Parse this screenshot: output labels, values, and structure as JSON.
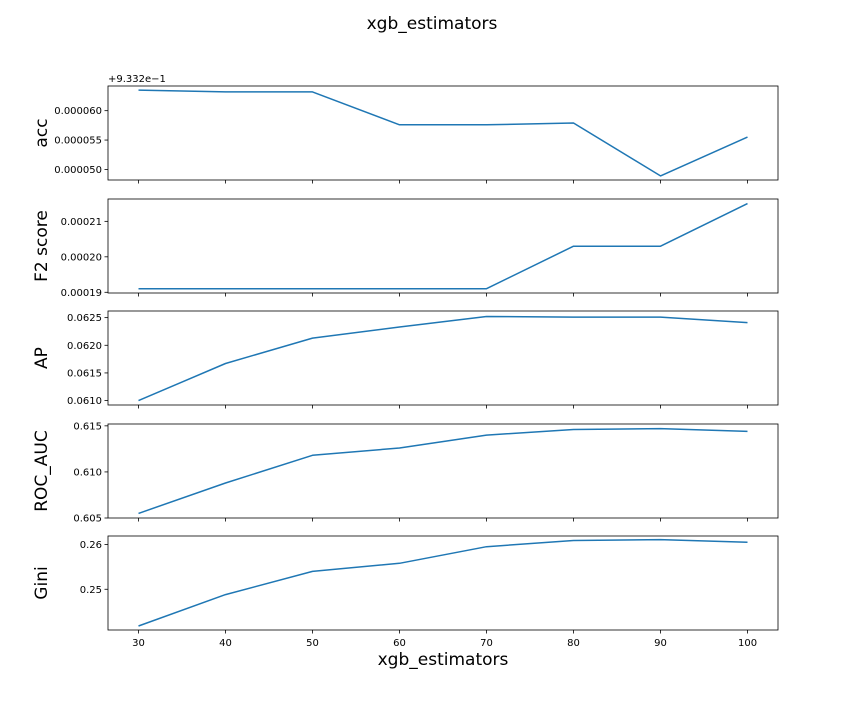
{
  "suptitle": "xgb_estimators",
  "chart_data": {
    "type": "line",
    "title": "xgb_estimators",
    "xlabel": "xgb_estimators",
    "x": [
      30,
      40,
      50,
      60,
      70,
      80,
      90,
      100
    ],
    "xticks": [
      30,
      40,
      50,
      60,
      70,
      80,
      90,
      100
    ],
    "xticklabels": [
      "30",
      "40",
      "50",
      "60",
      "70",
      "80",
      "90",
      "100"
    ],
    "xlim": [
      26.5,
      103.5
    ],
    "line_color": "#1f77b4",
    "grid": false,
    "panels": [
      {
        "ylabel": "acc",
        "offset_label": "+9.332e−1",
        "values": [
          6.35e-05,
          6.32e-05,
          6.32e-05,
          5.76e-05,
          5.76e-05,
          5.79e-05,
          4.89e-05,
          5.55e-05
        ],
        "ylim": [
          4.82e-05,
          6.42e-05
        ],
        "yticks": [
          5e-05,
          5.5e-05,
          6e-05
        ],
        "yticklabels": [
          "0.000050",
          "0.000055",
          "0.000060"
        ]
      },
      {
        "ylabel": "F2 score",
        "values": [
          0.000191,
          0.000191,
          0.000191,
          0.000191,
          0.000191,
          0.000203,
          0.000203,
          0.000215
        ],
        "ylim": [
          0.0001898,
          0.0002163
        ],
        "yticks": [
          0.00019,
          0.0002,
          0.00021
        ],
        "yticklabels": [
          "0.00019",
          "0.00020",
          "0.00021"
        ]
      },
      {
        "ylabel": "AP",
        "values": [
          0.061,
          0.06167,
          0.06213,
          0.06233,
          0.06252,
          0.06251,
          0.06251,
          0.06241
        ],
        "ylim": [
          0.06092,
          0.06262
        ],
        "yticks": [
          0.061,
          0.0615,
          0.062,
          0.0625
        ],
        "yticklabels": [
          "0.0610",
          "0.0615",
          "0.0620",
          "0.0625"
        ]
      },
      {
        "ylabel": "ROC_AUC",
        "values": [
          0.6055,
          0.6088,
          0.6118,
          0.6126,
          0.614,
          0.6146,
          0.6147,
          0.6144
        ],
        "ylim": [
          0.605,
          0.6152
        ],
        "yticks": [
          0.605,
          0.61,
          0.615
        ],
        "yticklabels": [
          "0.605",
          "0.610",
          "0.615"
        ]
      },
      {
        "ylabel": "Gini",
        "values": [
          0.2418,
          0.2488,
          0.254,
          0.2558,
          0.2595,
          0.2609,
          0.2611,
          0.2605
        ],
        "ylim": [
          0.2409,
          0.2619
        ],
        "yticks": [
          0.25,
          0.26
        ],
        "yticklabels": [
          "0.25",
          "0.26"
        ]
      }
    ]
  }
}
